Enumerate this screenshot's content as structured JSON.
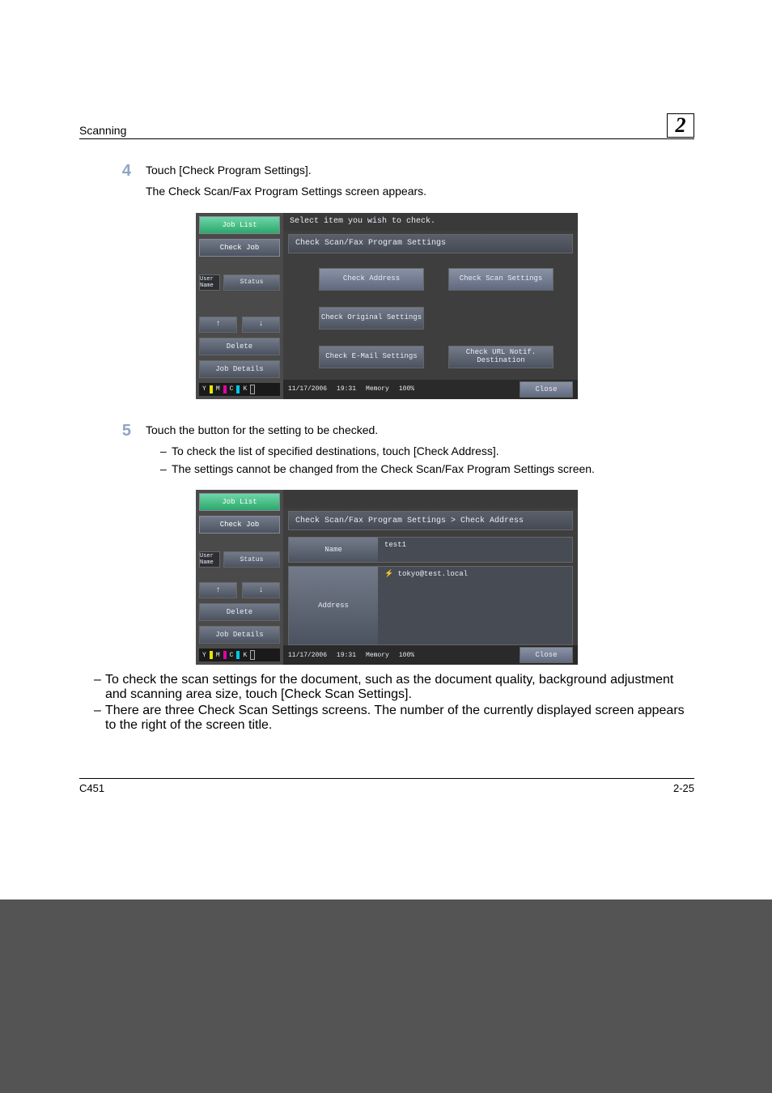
{
  "header": {
    "section_title": "Scanning",
    "chapter_number": "2"
  },
  "steps": {
    "s4": {
      "number": "4",
      "line1": "Touch [Check Program Settings].",
      "line2": "The Check Scan/Fax Program Settings screen appears."
    },
    "s5": {
      "number": "5",
      "line1": "Touch the button for the setting to be checked.",
      "bullets_a": {
        "b1": "To check the list of specified destinations, touch [Check Address].",
        "b2": "The settings cannot be changed from the Check Scan/Fax Program Settings screen."
      },
      "bullets_b": {
        "b1": "To check the scan settings for the document, such as the document quality, background adjustment and scanning area size, touch [Check Scan Settings].",
        "b2": "There are three Check Scan Settings screens. The number of the currently displayed screen appears to the right of the screen title."
      }
    }
  },
  "screenshot_a": {
    "top_msg": "Select item you wish to check.",
    "title_bar": "Check Scan/Fax Program Settings",
    "side": {
      "tab1": "Job List",
      "tab2": "Check Job",
      "usr": "User\nName",
      "status": "Status",
      "delete": "Delete",
      "details": "Job Details"
    },
    "options": {
      "o1": "Check Address",
      "o2": "Check Scan Settings",
      "o3": "Check Original\nSettings",
      "o4": "",
      "o5": "Check E-Mail\nSettings",
      "o6": "Check URL Notif.\nDestination"
    },
    "footer": {
      "date": "11/17/2006",
      "time": "19:31",
      "mem_lbl": "Memory",
      "mem_val": "100%",
      "close": "Close"
    }
  },
  "screenshot_b": {
    "title_bar": "Check Scan/Fax Program Settings > Check Address",
    "side": {
      "tab1": "Job List",
      "tab2": "Check Job",
      "usr": "User\nName",
      "status": "Status",
      "delete": "Delete",
      "details": "Job Details"
    },
    "detail": {
      "name_lbl": "Name",
      "name_val": "test1",
      "addr_lbl": "Address",
      "addr_val": "⚡ tokyo@test.local"
    },
    "footer": {
      "date": "11/17/2006",
      "time": "19:31",
      "mem_lbl": "Memory",
      "mem_val": "100%",
      "close": "Close"
    }
  },
  "page_footer": {
    "model": "C451",
    "page_no": "2-25"
  },
  "colors": {
    "page_bg": "#545454"
  }
}
